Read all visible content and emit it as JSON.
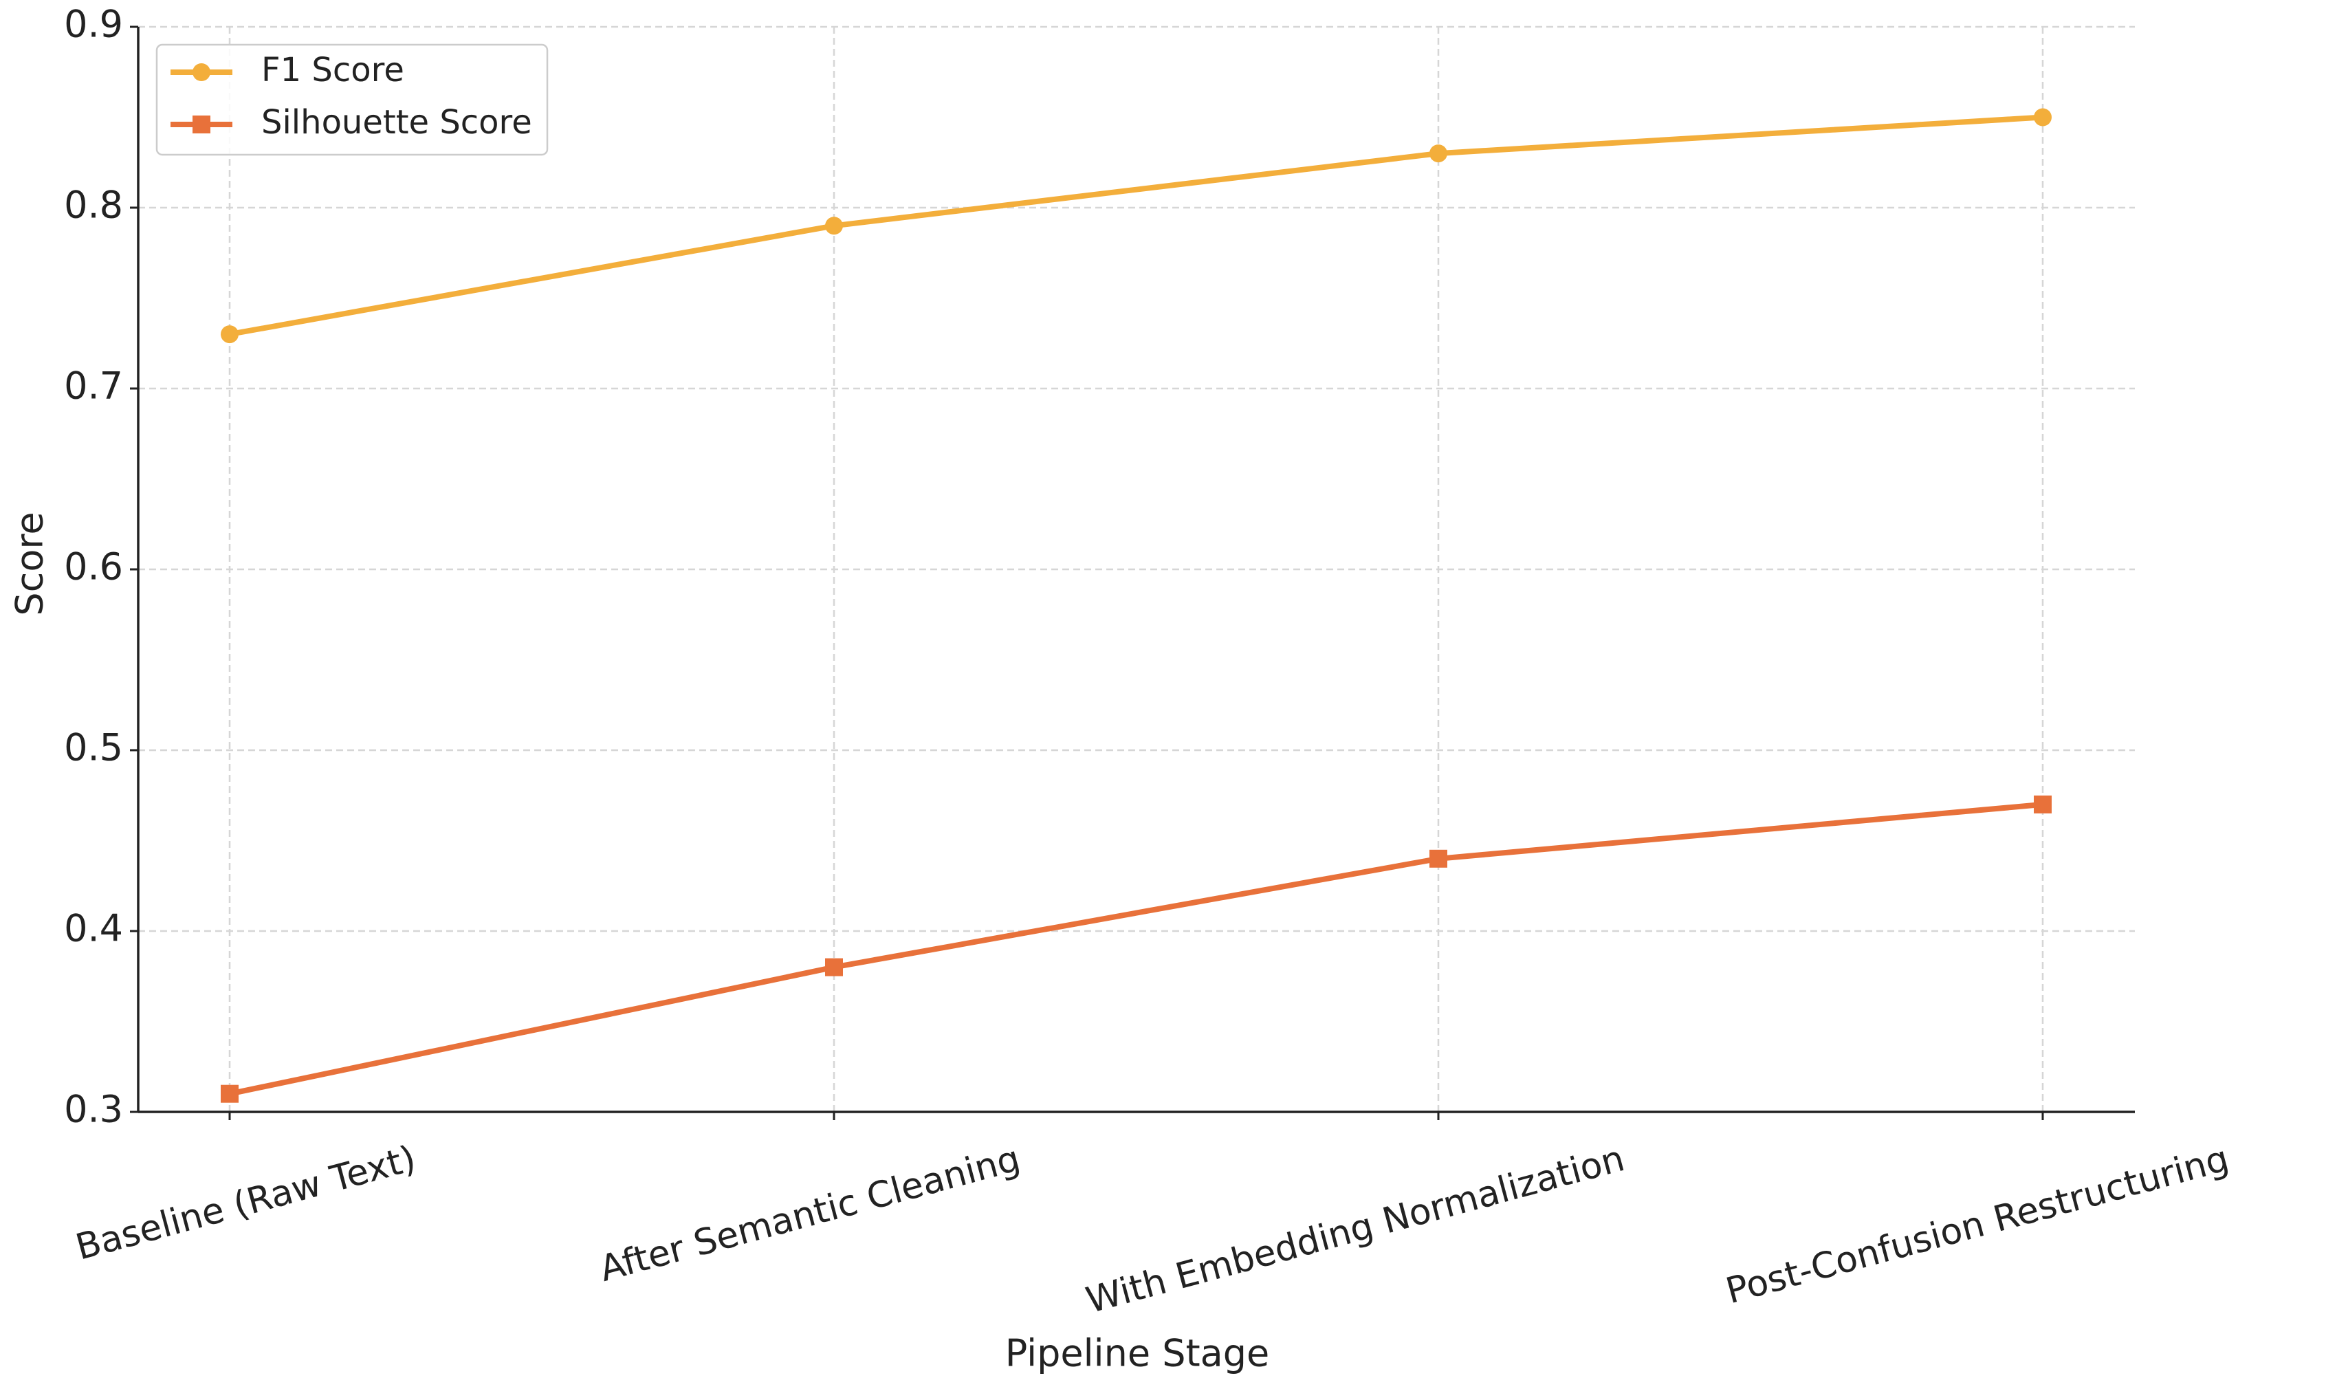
{
  "chart_data": {
    "type": "line",
    "x_label": "Pipeline Stage",
    "y_label": "Score",
    "categories": [
      "Baseline (Raw Text)",
      "After Semantic Cleaning",
      "With Embedding Normalization",
      "Post-Confusion Restructuring"
    ],
    "series": [
      {
        "name": "F1 Score",
        "color": "#f3ae3b",
        "marker": "circle",
        "values": [
          0.73,
          0.79,
          0.83,
          0.85
        ]
      },
      {
        "name": "Silhouette Score",
        "color": "#e8713a",
        "marker": "square",
        "values": [
          0.31,
          0.38,
          0.44,
          0.47
        ]
      }
    ],
    "ylim": [
      0.3,
      0.9
    ],
    "yticks": [
      0.3,
      0.4,
      0.5,
      0.6,
      0.7,
      0.8,
      0.9
    ],
    "grid": true,
    "legend": "upper left"
  }
}
